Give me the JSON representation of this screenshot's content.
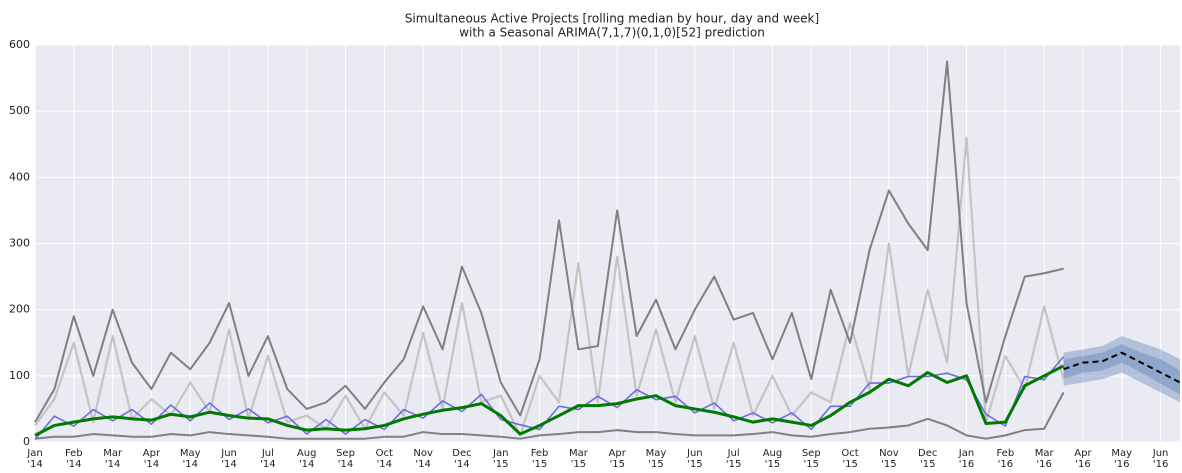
{
  "chart_data": {
    "type": "line",
    "title": "Simultaneous Active Projects [rolling median by hour, day and week]",
    "subtitle": "with a Seasonal ARIMA(7,1,7)(0,1,0)[52] prediction",
    "x": [
      0,
      0.5,
      1,
      1.5,
      2,
      2.5,
      3,
      3.5,
      4,
      4.5,
      5,
      5.5,
      6,
      6.5,
      7,
      7.5,
      8,
      8.5,
      9,
      9.5,
      10,
      10.5,
      11,
      11.5,
      12,
      12.5,
      13,
      13.5,
      14,
      14.5,
      15,
      15.5,
      16,
      16.5,
      17,
      17.5,
      18,
      18.5,
      19,
      19.5,
      20,
      20.5,
      21,
      21.5,
      22,
      22.5,
      23,
      23.5,
      24,
      24.5,
      25,
      25.5,
      26,
      26.5
    ],
    "series": [
      {
        "color": "#c4c4c4",
        "values": [
          25,
          65,
          150,
          30,
          160,
          35,
          65,
          40,
          90,
          45,
          170,
          35,
          130,
          30,
          40,
          20,
          70,
          20,
          75,
          40,
          165,
          50,
          210,
          60,
          70,
          10,
          100,
          60,
          270,
          60,
          280,
          70,
          170,
          60,
          160,
          50,
          150,
          40,
          100,
          40,
          75,
          60,
          180,
          80,
          300,
          100,
          230,
          120,
          460,
          30,
          130,
          80,
          205,
          95
        ]
      },
      {
        "color": "#808080",
        "values": [
          30,
          80,
          190,
          100,
          200,
          120,
          80,
          135,
          110,
          150,
          210,
          100,
          160,
          80,
          50,
          60,
          85,
          50,
          90,
          125,
          205,
          140,
          265,
          195,
          90,
          40,
          125,
          335,
          140,
          145,
          350,
          160,
          215,
          140,
          200,
          250,
          185,
          195,
          125,
          195,
          95,
          230,
          150,
          290,
          380,
          330,
          290,
          575,
          210,
          60,
          160,
          250,
          255,
          262
        ]
      },
      {
        "color": "#808080",
        "values": [
          5,
          8,
          8,
          12,
          10,
          8,
          8,
          12,
          10,
          15,
          12,
          10,
          8,
          5,
          5,
          5,
          5,
          5,
          8,
          8,
          15,
          12,
          12,
          10,
          8,
          5,
          10,
          12,
          15,
          15,
          18,
          15,
          15,
          12,
          10,
          10,
          10,
          12,
          15,
          10,
          8,
          12,
          15,
          20,
          22,
          25,
          35,
          25,
          10,
          5,
          10,
          18,
          20,
          75
        ]
      },
      {
        "color": "#6e6ee0",
        "values": [
          4,
          39,
          24,
          49,
          32,
          49,
          27,
          56,
          32,
          59,
          34,
          50,
          29,
          39,
          12,
          34,
          12,
          34,
          19,
          49,
          36,
          62,
          46,
          72,
          34,
          26,
          19,
          54,
          49,
          69,
          52,
          79,
          64,
          69,
          44,
          59,
          32,
          44,
          29,
          44,
          19,
          54,
          54,
          89,
          89,
          99,
          99,
          104,
          94,
          42,
          24,
          99,
          94,
          129
        ]
      },
      {
        "color": "#007a00",
        "values": [
          10,
          25,
          30,
          35,
          38,
          35,
          33,
          42,
          38,
          45,
          40,
          36,
          35,
          25,
          18,
          20,
          18,
          20,
          25,
          35,
          42,
          48,
          52,
          58,
          40,
          12,
          25,
          40,
          55,
          55,
          58,
          65,
          70,
          55,
          50,
          45,
          38,
          30,
          35,
          30,
          25,
          40,
          60,
          75,
          95,
          85,
          105,
          90,
          100,
          28,
          30,
          85,
          100,
          115
        ]
      },
      {
        "color": "#000000",
        "dashed": true,
        "x": [
          26.5,
          27,
          27.5,
          28,
          28.5,
          29,
          29.5
        ],
        "values": [
          110,
          120,
          122,
          135,
          120,
          105,
          90
        ]
      }
    ],
    "bands": [
      {
        "color": "#4c72b0",
        "x": [
          26.5,
          27,
          27.5,
          28,
          28.5,
          29,
          29.5
        ],
        "upper": [
          135,
          140,
          145,
          160,
          150,
          140,
          125
        ],
        "lower": [
          85,
          90,
          95,
          105,
          90,
          75,
          60
        ]
      },
      {
        "color": "#4c72b0",
        "x": [
          26.5,
          27,
          27.5,
          28,
          28.5,
          29,
          29.5
        ],
        "upper": [
          125,
          130,
          135,
          148,
          135,
          125,
          108
        ],
        "lower": [
          95,
          105,
          108,
          120,
          105,
          88,
          72
        ]
      }
    ],
    "xlim": [
      0,
      29.5
    ],
    "ylim": [
      0,
      600
    ],
    "yticks": [
      0,
      100,
      200,
      300,
      400,
      500,
      600
    ],
    "xticks": [
      {
        "value": 0,
        "label": "Jan\n'14"
      },
      {
        "value": 1,
        "label": "Feb\n'14"
      },
      {
        "value": 2,
        "label": "Mar\n'14"
      },
      {
        "value": 3,
        "label": "Apr\n'14"
      },
      {
        "value": 4,
        "label": "May\n'14"
      },
      {
        "value": 5,
        "label": "Jun\n'14"
      },
      {
        "value": 6,
        "label": "Jul\n'14"
      },
      {
        "value": 7,
        "label": "Aug\n'14"
      },
      {
        "value": 8,
        "label": "Sep\n'14"
      },
      {
        "value": 9,
        "label": "Oct\n'14"
      },
      {
        "value": 10,
        "label": "Nov\n'14"
      },
      {
        "value": 11,
        "label": "Dec\n'14"
      },
      {
        "value": 12,
        "label": "Jan\n'15"
      },
      {
        "value": 13,
        "label": "Feb\n'15"
      },
      {
        "value": 14,
        "label": "Mar\n'15"
      },
      {
        "value": 15,
        "label": "Apr\n'15"
      },
      {
        "value": 16,
        "label": "May\n'15"
      },
      {
        "value": 17,
        "label": "Jun\n'15"
      },
      {
        "value": 18,
        "label": "Jul\n'15"
      },
      {
        "value": 19,
        "label": "Aug\n'15"
      },
      {
        "value": 20,
        "label": "Sep\n'15"
      },
      {
        "value": 21,
        "label": "Oct\n'15"
      },
      {
        "value": 22,
        "label": "Nov\n'15"
      },
      {
        "value": 23,
        "label": "Dec\n'15"
      },
      {
        "value": 24,
        "label": "Jan\n'16"
      },
      {
        "value": 25,
        "label": "Feb\n'16"
      },
      {
        "value": 26,
        "label": "Mar\n'16"
      },
      {
        "value": 27,
        "label": "Apr\n'16"
      },
      {
        "value": 28,
        "label": "May\n'16"
      },
      {
        "value": 29,
        "label": "Jun\n'16"
      }
    ],
    "grid": true,
    "background": "#eaeaf2"
  }
}
